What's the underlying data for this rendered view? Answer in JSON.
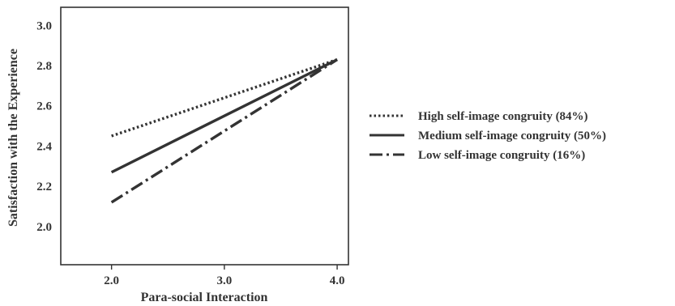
{
  "chart_data": {
    "type": "line",
    "xlabel": "Para-social Interaction",
    "ylabel": "Satisfaction with the Experience",
    "x": [
      2.0,
      4.0
    ],
    "x_ticks": [
      "2.0",
      "3.0",
      "4.0"
    ],
    "x_tick_values": [
      2.0,
      3.0,
      4.0
    ],
    "y_ticks": [
      "2.0",
      "2.2",
      "2.4",
      "2.6",
      "2.8",
      "3.0"
    ],
    "y_tick_values": [
      2.0,
      2.2,
      2.4,
      2.6,
      2.8,
      3.0
    ],
    "xlim": [
      1.55,
      4.1
    ],
    "ylim": [
      1.81,
      3.09
    ],
    "grid": false,
    "legend_position": "right",
    "series": [
      {
        "name": "High self-image congruity (84%)",
        "values": [
          2.45,
          2.83
        ],
        "style": "dotted",
        "color": "#333333"
      },
      {
        "name": "Medium self-image congruity (50%)",
        "values": [
          2.27,
          2.83
        ],
        "style": "solid",
        "color": "#333333"
      },
      {
        "name": "Low self-image congruity (16%)",
        "values": [
          2.12,
          2.83
        ],
        "style": "dashdot",
        "color": "#333333"
      }
    ]
  }
}
